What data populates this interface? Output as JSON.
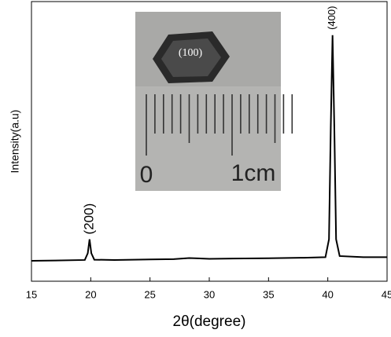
{
  "chart_data": {
    "type": "line",
    "xlabel": "Intensity(a.u)",
    "x_axis_label": "2θ(degree)",
    "x": [
      15,
      17,
      19.5,
      19.75,
      19.9,
      20.05,
      20.3,
      22,
      25,
      27,
      28.3,
      30,
      32,
      35,
      38,
      39.8,
      40.1,
      40.25,
      40.4,
      40.55,
      40.7,
      41,
      43,
      45
    ],
    "series": [
      {
        "color": "#000000",
        "values": [
          7.3,
          7.4,
          7.6,
          10,
          15,
          10,
          7.7,
          7.6,
          7.8,
          7.9,
          8.3,
          8.0,
          8.1,
          8.2,
          8.4,
          8.6,
          15,
          55,
          88,
          55,
          15,
          9,
          8.6,
          8.6
        ]
      }
    ],
    "xlim": [
      15,
      45
    ],
    "xticks": [
      15,
      20,
      25,
      30,
      35,
      40,
      45
    ],
    "ylim": [
      0,
      100
    ],
    "annotations": [
      {
        "text": "(200)",
        "x": 19.9,
        "y": 15
      },
      {
        "text": "(400)",
        "x": 40.4,
        "y": 88
      }
    ],
    "inset_labels": [
      "(100)",
      "0",
      "1cm"
    ]
  }
}
